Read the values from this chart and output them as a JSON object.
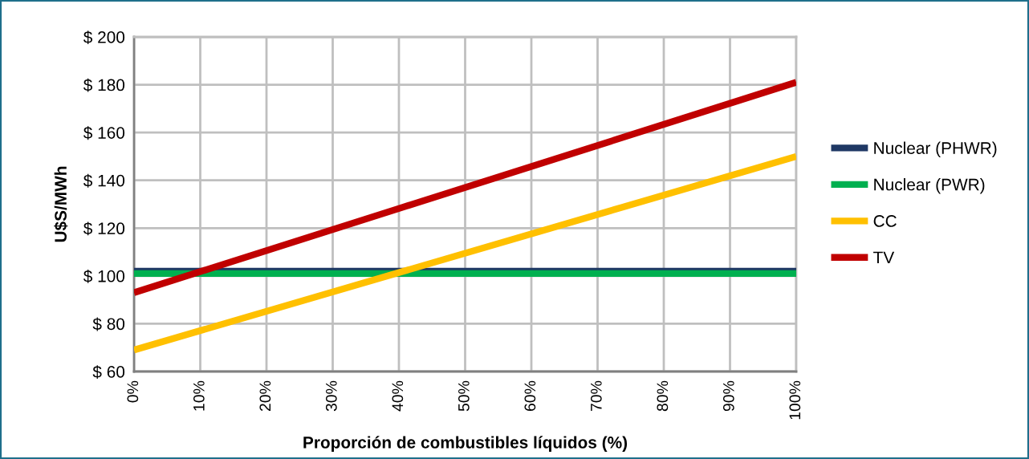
{
  "chart_data": {
    "type": "line",
    "xlabel": "Proporción de combustibles líquidos (%)",
    "ylabel": "U$S/MWh",
    "x": [
      0,
      100
    ],
    "series": [
      {
        "name": "Nuclear (PHWR)",
        "color": "#1f3864",
        "values": [
          102,
          102
        ]
      },
      {
        "name": "Nuclear (PWR)",
        "color": "#00b050",
        "values": [
          101,
          101
        ]
      },
      {
        "name": "CC",
        "color": "#ffc000",
        "values": [
          69,
          150
        ]
      },
      {
        "name": "TV",
        "color": "#c00000",
        "values": [
          93,
          181
        ]
      }
    ],
    "xlim": [
      0,
      100
    ],
    "xticks": [
      {
        "value": 0,
        "label": "0%"
      },
      {
        "value": 10,
        "label": "10%"
      },
      {
        "value": 20,
        "label": "20%"
      },
      {
        "value": 30,
        "label": "30%"
      },
      {
        "value": 40,
        "label": "40%"
      },
      {
        "value": 50,
        "label": "50%"
      },
      {
        "value": 60,
        "label": "60%"
      },
      {
        "value": 70,
        "label": "70%"
      },
      {
        "value": 80,
        "label": "80%"
      },
      {
        "value": 90,
        "label": "90%"
      },
      {
        "value": 100,
        "label": "100%"
      }
    ],
    "ylim": [
      60,
      200
    ],
    "yticks": [
      {
        "value": 60,
        "label": "$ 60"
      },
      {
        "value": 80,
        "label": "$ 80"
      },
      {
        "value": 100,
        "label": "$ 100"
      },
      {
        "value": 120,
        "label": "$ 120"
      },
      {
        "value": 140,
        "label": "$ 140"
      },
      {
        "value": 160,
        "label": "$ 160"
      },
      {
        "value": 180,
        "label": "$ 180"
      },
      {
        "value": 200,
        "label": "$ 200"
      }
    ],
    "grid": true,
    "legend": "right",
    "marker": "none",
    "line_style": "solid"
  }
}
